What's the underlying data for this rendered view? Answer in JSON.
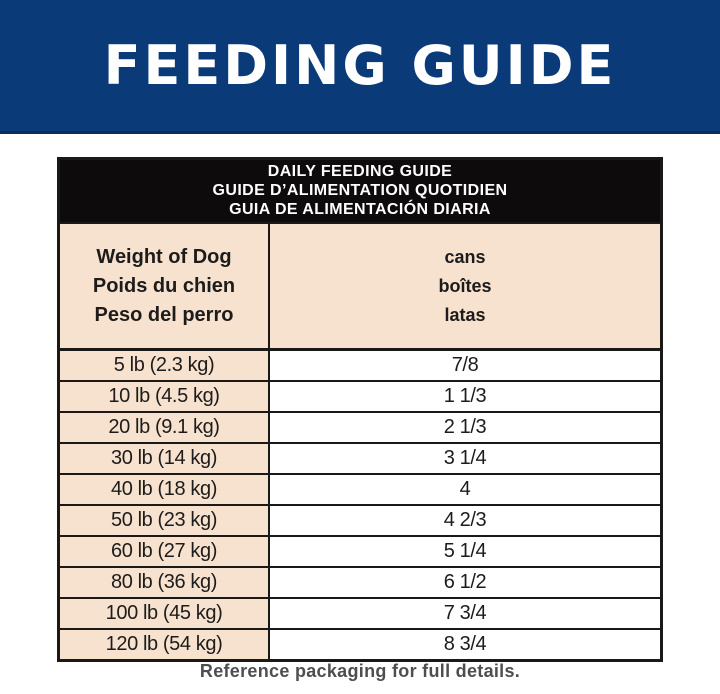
{
  "banner": {
    "title": "FEEDING GUIDE",
    "bg_color": "#0a3a78",
    "text_color": "#ffffff"
  },
  "table": {
    "title_lines": [
      "DAILY FEEDING GUIDE",
      "GUIDE D’ALIMENTATION QUOTIDIEN",
      "GUIA DE ALIMENTACIÓN DIARIA"
    ],
    "columns": {
      "weight": {
        "lines": [
          "Weight of Dog",
          "Poids du chien",
          "Peso del perro"
        ]
      },
      "cans": {
        "lines": [
          "cans",
          "boîtes",
          "latas"
        ]
      }
    },
    "rows": [
      {
        "weight": "5 lb (2.3 kg)",
        "cans": "7/8"
      },
      {
        "weight": "10 lb (4.5 kg)",
        "cans": "1 1/3"
      },
      {
        "weight": "20 lb (9.1 kg)",
        "cans": "2 1/3"
      },
      {
        "weight": "30 lb (14 kg)",
        "cans": "3 1/4"
      },
      {
        "weight": "40 lb (18 kg)",
        "cans": "4"
      },
      {
        "weight": "50 lb (23 kg)",
        "cans": "4 2/3"
      },
      {
        "weight": "60 lb (27 kg)",
        "cans": "5 1/4"
      },
      {
        "weight": "80 lb (36 kg)",
        "cans": "6 1/2"
      },
      {
        "weight": "100 lb (45 kg)",
        "cans": "7 3/4"
      },
      {
        "weight": "120 lb (54 kg)",
        "cans": "8 3/4"
      }
    ],
    "colors": {
      "header_band_bg": "#0d0b0c",
      "cell_cream": "#f6e2cf",
      "border": "#1b1918"
    }
  },
  "footer": {
    "note": "Reference packaging for full details."
  }
}
